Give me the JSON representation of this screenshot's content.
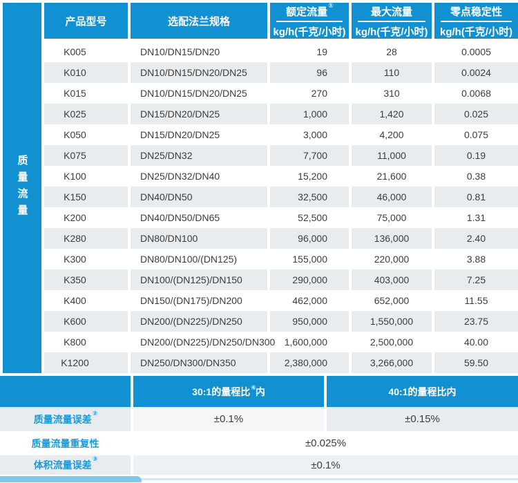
{
  "colors": {
    "primary_blue": "#1191d1",
    "row_stripe_gray": "#e8ecef",
    "label_blue_text": "#1a9ad9",
    "deco_light_blue": "#7ec9ea",
    "deco_pale_blue": "#cfe9f6",
    "body_text": "#3c3c3c"
  },
  "sidebar": {
    "label": "质量流量"
  },
  "main_table": {
    "headers": {
      "model": "产品型号",
      "flange": "选配法兰规格",
      "rated": {
        "title": "额定流量",
        "sup": "①",
        "unit": "kg/h(千克/小时)"
      },
      "max": {
        "title": "最大流量",
        "sup": "",
        "unit": "kg/h(千克/小时)"
      },
      "zero": {
        "title": "零点稳定性",
        "sup": "",
        "unit": "kg/h(千克/小时)"
      }
    },
    "rows": [
      {
        "model": "K005",
        "flange": "DN10/DN15/DN20",
        "rated": "19",
        "max": "28",
        "zero": "0.0005"
      },
      {
        "model": "K010",
        "flange": "DN10/DN15/DN20/DN25",
        "rated": "96",
        "max": "110",
        "zero": "0.0024"
      },
      {
        "model": "K015",
        "flange": "DN10/DN15/DN20/DN25",
        "rated": "270",
        "max": "310",
        "zero": "0.0068"
      },
      {
        "model": "K025",
        "flange": "DN15/DN20/DN25",
        "rated": "1,000",
        "max": "1,420",
        "zero": "0.025"
      },
      {
        "model": "K050",
        "flange": "DN15/DN20/DN25",
        "rated": "3,000",
        "max": "4,200",
        "zero": "0.075"
      },
      {
        "model": "K075",
        "flange": "DN25/DN32",
        "rated": "7,700",
        "max": "11,000",
        "zero": "0.19"
      },
      {
        "model": "K100",
        "flange": "DN25/DN32/DN40",
        "rated": "15,200",
        "max": "21,600",
        "zero": "0.38"
      },
      {
        "model": "K150",
        "flange": "DN40/DN50",
        "rated": "32,500",
        "max": "46,000",
        "zero": "0.81"
      },
      {
        "model": "K200",
        "flange": "DN40/DN50/DN65",
        "rated": "52,500",
        "max": "75,000",
        "zero": "1.31"
      },
      {
        "model": "K280",
        "flange": "DN80/DN100",
        "rated": "96,000",
        "max": "136,000",
        "zero": "2.40"
      },
      {
        "model": "K300",
        "flange": "DN80/DN100/(DN125)",
        "rated": "155,000",
        "max": "220,000",
        "zero": "3.88"
      },
      {
        "model": "K350",
        "flange": "DN100/(DN125)/DN150",
        "rated": "290,000",
        "max": "403,000",
        "zero": "7.25"
      },
      {
        "model": "K400",
        "flange": "DN150/(DN175)/DN200",
        "rated": "462,000",
        "max": "652,000",
        "zero": "11.55"
      },
      {
        "model": "K600",
        "flange": "DN200/(DN225)/DN250",
        "rated": "950,000",
        "max": "1,550,000",
        "zero": "23.75"
      },
      {
        "model": "K800",
        "flange": "DN200/(DN225)/DN250/DN300",
        "rated": "1,600,000",
        "max": "2,500,000",
        "zero": "40.00"
      },
      {
        "model": "K1200",
        "flange": "DN250/DN300/DN350",
        "rated": "2,380,000",
        "max": "3,266,000",
        "zero": "59.50"
      }
    ]
  },
  "accuracy_table": {
    "range_col1": {
      "prefix": "30:1的量程比",
      "sup": "④",
      "suffix": "内"
    },
    "range_col2": {
      "text": "40:1的量程比内"
    },
    "rows": [
      {
        "label": "质量流量误差",
        "sup": "②",
        "value1": "±0.1%",
        "value2": "±0.15%"
      },
      {
        "label": "质量流量重复性",
        "sup": "",
        "value1": "±0.025%",
        "value2": ""
      },
      {
        "label": "体积流量误差",
        "sup": "③",
        "value1": "±0.1%",
        "value2": ""
      }
    ]
  }
}
